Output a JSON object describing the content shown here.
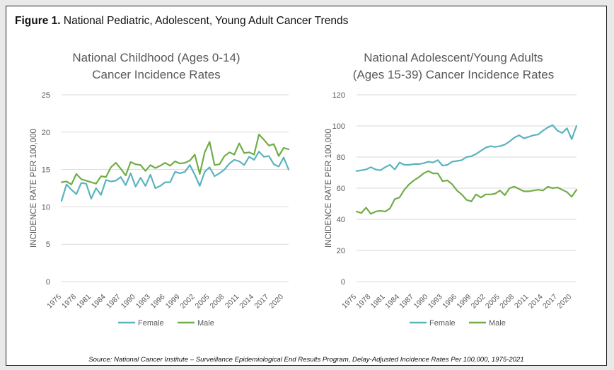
{
  "figure": {
    "label": "Figure 1.",
    "title": "National Pediatric, Adolescent, Young Adult Cancer Trends",
    "source": "Source: National Cancer Institute – Surveillance Epidemiological End Results Program, Delay-Adjusted Incidence Rates Per 100,000, 1975-2021"
  },
  "colors": {
    "female": "#5ab3c0",
    "male": "#70ad47",
    "grid": "#d9d9d9",
    "text": "#595959"
  },
  "chart_data": [
    {
      "type": "line",
      "title_line1": "National Childhood (Ages 0-14)",
      "title_line2": "Cancer Incidence Rates",
      "ylabel": "INCIDENCE RATE PER 100,000",
      "xlabel": "",
      "ylim": [
        0,
        25
      ],
      "yticks": [
        "0",
        "5",
        "10",
        "15",
        "20",
        "25"
      ],
      "xtick_labels": [
        "1975",
        "1978",
        "1981",
        "1984",
        "1987",
        "1990",
        "1993",
        "1996",
        "1999",
        "2002",
        "2005",
        "2008",
        "2011",
        "2014",
        "2017",
        "2020"
      ],
      "grid": true,
      "legend": "bottom",
      "x": [
        1975,
        1976,
        1977,
        1978,
        1979,
        1980,
        1981,
        1982,
        1983,
        1984,
        1985,
        1986,
        1987,
        1988,
        1989,
        1990,
        1991,
        1992,
        1993,
        1994,
        1995,
        1996,
        1997,
        1998,
        1999,
        2000,
        2001,
        2002,
        2003,
        2004,
        2005,
        2006,
        2007,
        2008,
        2009,
        2010,
        2011,
        2012,
        2013,
        2014,
        2015,
        2016,
        2017,
        2018,
        2019,
        2020,
        2021
      ],
      "series": [
        {
          "name": "Female",
          "values": [
            10.8,
            13.0,
            12.3,
            11.7,
            13.2,
            13.1,
            11.1,
            12.5,
            11.6,
            13.6,
            13.4,
            13.5,
            14.0,
            12.9,
            14.5,
            12.7,
            13.9,
            12.8,
            14.3,
            12.5,
            12.8,
            13.3,
            13.3,
            14.7,
            14.5,
            14.7,
            15.6,
            14.3,
            12.8,
            14.7,
            15.3,
            14.1,
            14.5,
            15.0,
            15.8,
            16.3,
            16.1,
            15.6,
            16.7,
            16.3,
            17.4,
            16.7,
            16.8,
            15.7,
            15.4,
            16.6,
            15.0
          ]
        },
        {
          "name": "Male",
          "values": [
            13.3,
            13.4,
            13.0,
            14.4,
            13.7,
            13.5,
            13.3,
            13.1,
            14.1,
            14.0,
            15.3,
            15.9,
            15.1,
            14.2,
            16.0,
            15.7,
            15.6,
            14.8,
            15.6,
            15.2,
            15.5,
            15.9,
            15.5,
            16.1,
            15.8,
            15.9,
            16.2,
            17.0,
            14.4,
            17.3,
            18.7,
            15.6,
            15.7,
            16.8,
            17.3,
            17.0,
            18.5,
            17.2,
            17.3,
            17.0,
            19.7,
            19.0,
            18.2,
            18.4,
            16.8,
            17.9,
            17.7
          ]
        }
      ]
    },
    {
      "type": "line",
      "title_line1": "National Adolescent/Young Adults",
      "title_line2": "(Ages 15-39) Cancer Incidence Rates",
      "ylabel": "INCIDENCE RATE PER 100,000",
      "xlabel": "",
      "ylim": [
        0,
        120
      ],
      "yticks": [
        "0",
        "20",
        "40",
        "60",
        "80",
        "100",
        "120"
      ],
      "xtick_labels": [
        "1975",
        "1978",
        "1981",
        "1984",
        "1987",
        "1990",
        "1993",
        "1996",
        "1999",
        "2002",
        "2005",
        "2008",
        "2011",
        "2014",
        "2017",
        "2020"
      ],
      "grid": true,
      "legend": "bottom",
      "x": [
        1975,
        1976,
        1977,
        1978,
        1979,
        1980,
        1981,
        1982,
        1983,
        1984,
        1985,
        1986,
        1987,
        1988,
        1989,
        1990,
        1991,
        1992,
        1993,
        1994,
        1995,
        1996,
        1997,
        1998,
        1999,
        2000,
        2001,
        2002,
        2003,
        2004,
        2005,
        2006,
        2007,
        2008,
        2009,
        2010,
        2011,
        2012,
        2013,
        2014,
        2015,
        2016,
        2017,
        2018,
        2019,
        2020,
        2021
      ],
      "series": [
        {
          "name": "Female",
          "values": [
            71,
            71.5,
            72,
            73.5,
            72,
            71.5,
            73.5,
            75,
            72,
            76.5,
            75,
            75,
            75.5,
            75.5,
            76,
            77,
            76.5,
            78,
            74.5,
            75,
            77,
            77.5,
            78,
            80,
            80.5,
            82,
            84,
            86,
            87,
            86.5,
            87,
            88,
            90,
            92.5,
            94,
            92,
            93,
            94,
            94.5,
            97,
            99,
            100.5,
            97,
            95.5,
            98.5,
            91.5,
            100
          ]
        },
        {
          "name": "Male",
          "values": [
            45,
            44,
            47.5,
            43.5,
            45,
            45.5,
            45,
            47,
            53,
            54,
            59,
            62.5,
            65,
            67,
            69.5,
            71,
            69.5,
            69.5,
            64.5,
            65,
            62.5,
            58.5,
            56,
            52.5,
            51.5,
            56,
            54,
            56,
            56,
            56.5,
            58.5,
            55.5,
            60,
            61,
            59.5,
            58,
            58,
            58.5,
            59,
            58.5,
            61,
            60,
            60.5,
            59,
            57.5,
            54.5,
            59
          ]
        }
      ]
    }
  ]
}
